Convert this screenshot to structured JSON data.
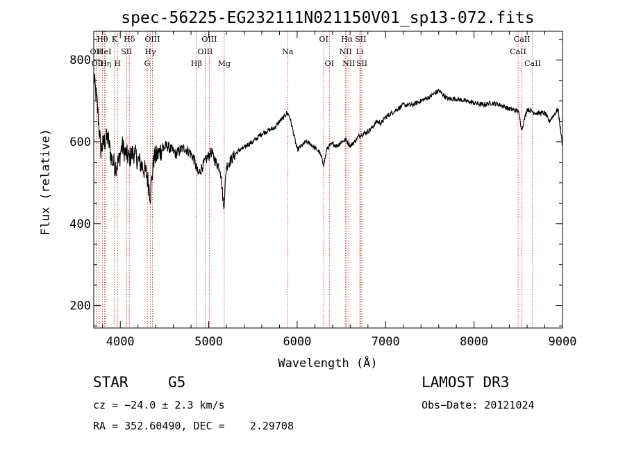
{
  "chart_data": {
    "type": "line",
    "title": "spec-56225-EG232111N021150V01_sp13-072.fits",
    "xlabel": "Wavelength (Å)",
    "ylabel": "Flux (relative)",
    "xlim": [
      3700,
      9000
    ],
    "ylim": [
      145,
      870
    ],
    "xticks": [
      4000,
      5000,
      6000,
      7000,
      8000,
      9000
    ],
    "yticks": [
      200,
      400,
      600,
      800
    ],
    "grid": false,
    "legend": "none",
    "series": [
      {
        "color": "#000000",
        "x": [
          3700,
          3740,
          3780,
          3820,
          3860,
          3900,
          3940,
          3980,
          4020,
          4060,
          4100,
          4150,
          4200,
          4250,
          4300,
          4340,
          4380,
          4430,
          4480,
          4530,
          4580,
          4630,
          4680,
          4730,
          4780,
          4830,
          4880,
          4930,
          4980,
          5030,
          5080,
          5130,
          5170,
          5200,
          5250,
          5300,
          5350,
          5400,
          5450,
          5500,
          5550,
          5600,
          5650,
          5700,
          5750,
          5800,
          5850,
          5880,
          5910,
          5950,
          6000,
          6050,
          6100,
          6150,
          6200,
          6250,
          6300,
          6340,
          6400,
          6450,
          6500,
          6550,
          6600,
          6650,
          6700,
          6750,
          6800,
          6850,
          6900,
          6950,
          7000,
          7100,
          7200,
          7300,
          7400,
          7500,
          7600,
          7700,
          7800,
          7900,
          8000,
          8100,
          8200,
          8300,
          8400,
          8500,
          8540,
          8600,
          8700,
          8800,
          8850,
          8900,
          8950,
          9000
        ],
        "y": [
          760,
          690,
          580,
          600,
          610,
          560,
          540,
          550,
          590,
          570,
          560,
          575,
          555,
          540,
          520,
          470,
          560,
          570,
          585,
          590,
          580,
          570,
          580,
          585,
          575,
          560,
          520,
          540,
          560,
          575,
          550,
          535,
          440,
          540,
          555,
          570,
          580,
          585,
          595,
          600,
          610,
          620,
          625,
          630,
          635,
          650,
          660,
          670,
          665,
          630,
          580,
          590,
          600,
          595,
          585,
          575,
          545,
          585,
          595,
          590,
          600,
          605,
          590,
          600,
          615,
          620,
          625,
          635,
          650,
          645,
          660,
          675,
          690,
          690,
          700,
          710,
          725,
          705,
          705,
          700,
          695,
          690,
          695,
          690,
          680,
          675,
          630,
          680,
          670,
          670,
          650,
          665,
          680,
          590
        ]
      }
    ],
    "lines": [
      {
        "label": "Hθ",
        "x": 3797,
        "row": 0
      },
      {
        "label": "OII",
        "x": 3727,
        "row": 1
      },
      {
        "label": "OIII",
        "x": 3760,
        "row": 2
      },
      {
        "label": "HeI",
        "x": 3820,
        "row": 1
      },
      {
        "label": "Hη",
        "x": 3835,
        "row": 2
      },
      {
        "label": "K",
        "x": 3934,
        "row": 0
      },
      {
        "label": "H",
        "x": 3969,
        "row": 2
      },
      {
        "label": "SII",
        "x": 4072,
        "row": 1
      },
      {
        "label": "Hδ",
        "x": 4102,
        "row": 0
      },
      {
        "label": "OIII",
        "x": 4363,
        "row": 0
      },
      {
        "label": "Hγ",
        "x": 4340,
        "row": 1
      },
      {
        "label": "G",
        "x": 4305,
        "row": 2
      },
      {
        "label": "Hβ",
        "x": 4861,
        "row": 2
      },
      {
        "label": "OIII",
        "x": 5007,
        "row": 0
      },
      {
        "label": "OIII",
        "x": 4959,
        "row": 1
      },
      {
        "label": "Mg",
        "x": 5175,
        "row": 2
      },
      {
        "label": "Na",
        "x": 5893,
        "row": 1
      },
      {
        "label": "OI",
        "x": 6300,
        "row": 0
      },
      {
        "label": "OI",
        "x": 6364,
        "row": 2
      },
      {
        "label": "Hα",
        "x": 6563,
        "row": 0
      },
      {
        "label": "SII",
        "x": 6717,
        "row": 0
      },
      {
        "label": "NII",
        "x": 6548,
        "row": 1
      },
      {
        "label": "Li",
        "x": 6708,
        "row": 1
      },
      {
        "label": "NII",
        "x": 6584,
        "row": 2
      },
      {
        "label": "SII",
        "x": 6731,
        "row": 2
      },
      {
        "label": "CaII",
        "x": 8542,
        "row": 0
      },
      {
        "label": "CaII",
        "x": 8498,
        "row": 1
      },
      {
        "label": "CaII",
        "x": 8662,
        "row": 2
      }
    ]
  },
  "info": {
    "class": "STAR",
    "subclass": "G5",
    "survey": "LAMOST DR3",
    "cz": "cz = −24.0 ± 2.3 km/s",
    "obs_date": "Obs−Date: 20121024",
    "coords": "RA = 352.60490, DEC =    2.29708"
  }
}
